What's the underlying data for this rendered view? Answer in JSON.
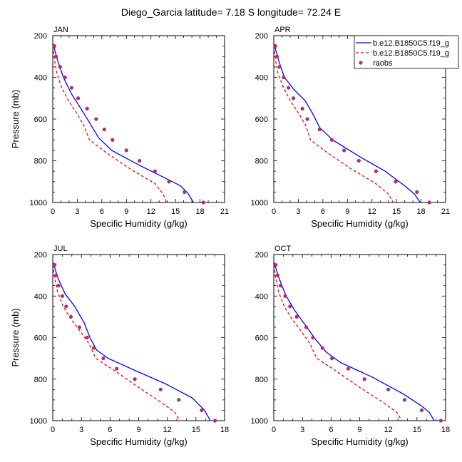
{
  "title": "Diego_Garcia  latitude= 7.18 S longitude= 72.24 E",
  "legend": {
    "items": [
      {
        "label": "b.e12.B1850C5.f19_g",
        "color": "#0000ff",
        "style": "solid",
        "kind": "line"
      },
      {
        "label": "b.e12.B1850C5.f19_g",
        "color": "#ff0000",
        "style": "dashed",
        "kind": "line"
      },
      {
        "label": "raobs",
        "color": "#b0306e",
        "kind": "marker"
      }
    ]
  },
  "chart_data": [
    {
      "type": "line",
      "panel_label": "JAN",
      "xlabel": "Specific Humidity (g/kg)",
      "ylabel": "Pressure (mb)",
      "xlim": [
        0,
        21
      ],
      "xticks": [
        0,
        3,
        6,
        9,
        12,
        15,
        18,
        21
      ],
      "ylim": [
        1000,
        200
      ],
      "yticks": [
        200,
        400,
        600,
        800,
        1000
      ],
      "series": [
        {
          "name": "b.e12.B1850C5.f19_g",
          "color": "#0000ff",
          "style": "solid",
          "x": [
            0.1,
            0.25,
            0.6,
            1.3,
            2.3,
            3.6,
            4.7,
            5.6,
            7.2,
            10.5,
            13.6,
            15.6,
            16.5,
            17.2
          ],
          "y": [
            240,
            270,
            320,
            400,
            480,
            560,
            630,
            690,
            750,
            820,
            880,
            920,
            955,
            1000
          ]
        },
        {
          "name": "b.e12.B1850C5.f19_g",
          "color": "#ff0000",
          "style": "dashed",
          "x": [
            0.05,
            0.15,
            0.5,
            1.1,
            1.9,
            2.9,
            3.8,
            4.5,
            6.5,
            9.5,
            12.5,
            13.5,
            13.9
          ],
          "y": [
            250,
            300,
            380,
            450,
            510,
            570,
            630,
            700,
            760,
            840,
            910,
            960,
            1000
          ]
        },
        {
          "name": "raobs",
          "color": "#b0306e",
          "style": "marker",
          "x": [
            0.2,
            0.4,
            0.9,
            1.5,
            2.3,
            3.1,
            4.2,
            5.3,
            6.3,
            7.3,
            9.0,
            10.6,
            12.5,
            14.2,
            16.1,
            18.4
          ],
          "y": [
            250,
            300,
            350,
            400,
            450,
            500,
            550,
            600,
            650,
            700,
            750,
            800,
            850,
            900,
            950,
            1000
          ]
        }
      ]
    },
    {
      "type": "line",
      "panel_label": "APR",
      "xlabel": "Specific Humidity (g/kg)",
      "ylabel": "",
      "xlim": [
        0,
        21
      ],
      "xticks": [
        0,
        3,
        6,
        9,
        12,
        15,
        18,
        21
      ],
      "ylim": [
        1000,
        200
      ],
      "yticks": [
        200,
        400,
        600,
        800,
        1000
      ],
      "series": [
        {
          "name": "b.e12.B1850C5.f19_g",
          "color": "#0000ff",
          "style": "solid",
          "x": [
            0.1,
            0.25,
            0.6,
            1.3,
            2.5,
            3.8,
            4.7,
            5.6,
            7.2,
            10.5,
            13.6,
            16.0,
            17.2,
            17.9
          ],
          "y": [
            240,
            270,
            320,
            400,
            460,
            510,
            570,
            640,
            700,
            780,
            850,
            920,
            960,
            1000
          ]
        },
        {
          "name": "b.e12.B1850C5.f19_g",
          "color": "#ff0000",
          "style": "dashed",
          "x": [
            0.05,
            0.15,
            0.5,
            1.2,
            2.0,
            3.0,
            3.9,
            4.5,
            6.5,
            9.5,
            12.5,
            14.0,
            14.6
          ],
          "y": [
            250,
            300,
            380,
            450,
            510,
            570,
            630,
            700,
            760,
            840,
            910,
            960,
            1000
          ]
        },
        {
          "name": "raobs",
          "color": "#b0306e",
          "style": "marker",
          "x": [
            0.2,
            0.4,
            0.7,
            1.2,
            1.8,
            2.4,
            3.5,
            4.1,
            5.6,
            7.1,
            8.6,
            10.4,
            12.5,
            14.9,
            17.5,
            19.0
          ],
          "y": [
            250,
            300,
            350,
            400,
            450,
            500,
            550,
            600,
            650,
            700,
            750,
            800,
            850,
            900,
            950,
            1000
          ]
        }
      ]
    },
    {
      "type": "line",
      "panel_label": "JUL",
      "xlabel": "Specific Humidity (g/kg)",
      "ylabel": "Pressure (mb)",
      "xlim": [
        0,
        18
      ],
      "xticks": [
        0,
        3,
        6,
        9,
        12,
        15,
        18
      ],
      "ylim": [
        1000,
        200
      ],
      "yticks": [
        200,
        400,
        600,
        800,
        1000
      ],
      "series": [
        {
          "name": "b.e12.B1850C5.f19_g",
          "color": "#0000ff",
          "style": "solid",
          "x": [
            0.1,
            0.25,
            0.6,
            1.3,
            2.3,
            3.3,
            3.9,
            4.6,
            5.8,
            8.7,
            11.7,
            14.6,
            15.9,
            16.5
          ],
          "y": [
            240,
            270,
            320,
            390,
            450,
            530,
            600,
            660,
            700,
            760,
            820,
            890,
            950,
            1000
          ]
        },
        {
          "name": "b.e12.B1850C5.f19_g",
          "color": "#ff0000",
          "style": "dashed",
          "x": [
            0.05,
            0.15,
            0.5,
            1.1,
            1.9,
            2.9,
            3.8,
            4.5,
            6.5,
            9.0,
            11.3,
            12.8,
            13.3
          ],
          "y": [
            250,
            300,
            380,
            450,
            510,
            570,
            630,
            700,
            760,
            840,
            910,
            960,
            1000
          ]
        },
        {
          "name": "raobs",
          "color": "#b0306e",
          "style": "marker",
          "x": [
            0.2,
            0.35,
            0.6,
            1.0,
            1.4,
            1.9,
            2.8,
            3.6,
            4.3,
            5.3,
            6.7,
            8.6,
            11.3,
            13.2,
            15.6,
            17.0
          ],
          "y": [
            250,
            300,
            350,
            400,
            450,
            500,
            550,
            600,
            650,
            700,
            750,
            800,
            850,
            900,
            950,
            1000
          ]
        }
      ]
    },
    {
      "type": "line",
      "panel_label": "OCT",
      "xlabel": "Specific Humidity (g/kg)",
      "ylabel": "",
      "xlim": [
        0,
        18
      ],
      "xticks": [
        0,
        3,
        6,
        9,
        12,
        15,
        18
      ],
      "ylim": [
        1000,
        200
      ],
      "yticks": [
        200,
        400,
        600,
        800,
        1000
      ],
      "series": [
        {
          "name": "b.e12.B1850C5.f19_g",
          "color": "#0000ff",
          "style": "solid",
          "x": [
            0.1,
            0.25,
            0.6,
            1.3,
            2.2,
            3.3,
            4.4,
            5.5,
            7.0,
            10.3,
            13.5,
            15.5,
            16.3,
            16.8
          ],
          "y": [
            240,
            270,
            320,
            400,
            470,
            540,
            610,
            670,
            720,
            790,
            870,
            930,
            960,
            1000
          ]
        },
        {
          "name": "b.e12.B1850C5.f19_g",
          "color": "#ff0000",
          "style": "dashed",
          "x": [
            0.05,
            0.15,
            0.5,
            1.1,
            1.9,
            2.9,
            3.8,
            4.5,
            6.5,
            9.0,
            11.4,
            12.9,
            13.4
          ],
          "y": [
            250,
            300,
            380,
            450,
            510,
            570,
            630,
            700,
            760,
            840,
            910,
            960,
            1000
          ]
        },
        {
          "name": "raobs",
          "color": "#b0306e",
          "style": "marker",
          "x": [
            0.2,
            0.4,
            0.7,
            1.2,
            1.7,
            2.4,
            3.4,
            4.1,
            5.1,
            6.1,
            7.8,
            9.5,
            12.0,
            13.7,
            15.5,
            17.5
          ],
          "y": [
            250,
            300,
            350,
            400,
            450,
            500,
            550,
            600,
            650,
            700,
            750,
            800,
            850,
            900,
            950,
            1000
          ]
        }
      ]
    }
  ]
}
